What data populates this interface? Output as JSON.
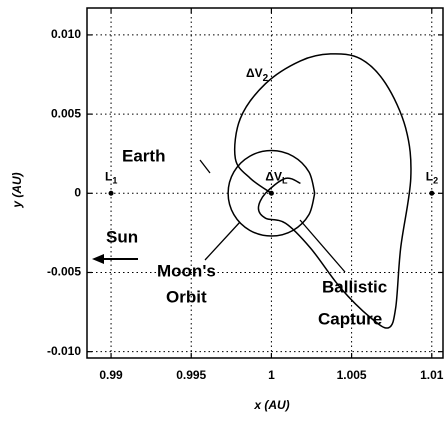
{
  "chart_data": {
    "type": "line",
    "xlabel": "x (AU)",
    "ylabel": "y (AU)",
    "xlim": [
      0.9885,
      1.0107
    ],
    "xticks": [
      0.99,
      0.995,
      1,
      1.005,
      1.01
    ],
    "ylim": [
      -0.0104,
      0.0117
    ],
    "yticks": [
      {
        "value": 0.01,
        "label": "0.010"
      },
      {
        "value": 0.005,
        "label": "0.005"
      },
      0,
      -0.005,
      {
        "value": -0.01,
        "label": "-0.010"
      }
    ],
    "grid": true,
    "series": [
      {
        "color": "#000000",
        "x": [
          1.0027,
          1.00234,
          1.00135,
          1,
          0.99865,
          0.99766,
          0.9973,
          0.99766,
          0.99865,
          1,
          1.00135,
          1.00234,
          1.0027
        ],
        "values": [
          0,
          0.00135,
          0.00234,
          0.0027,
          0.00234,
          0.00135,
          0,
          -0.00135,
          -0.00234,
          -0.0027,
          -0.00234,
          -0.00135,
          0
        ]
      },
      {
        "color": "#000000",
        "x": [
          1.0001,
          0.99869,
          0.99775,
          0.99806,
          0.99963,
          1.00181,
          1.00369,
          1.00556,
          1.00713,
          1.00838,
          1.00869,
          1.00806,
          1.00775,
          1.00731,
          1.00619,
          1.00431,
          1.00244,
          1.00088,
          0.99963,
          0.99919,
          0.99963,
          1.00088,
          1.00181
        ],
        "values": [
          -6e-05,
          0.00094,
          0.0022,
          0.00472,
          0.00692,
          0.00836,
          0.0088,
          0.00849,
          0.00692,
          0.00409,
          0.00094,
          -0.00346,
          -0.00723,
          -0.00849,
          -0.00786,
          -0.00597,
          -0.00346,
          -0.00189,
          -0.00157,
          -0.00094,
          0,
          0.00094,
          0.00063
        ]
      }
    ],
    "points": [
      {
        "label": "L",
        "sub": "1",
        "x": 0.99,
        "y": 0
      },
      {
        "label": "L",
        "sub": "2",
        "x": 1.01,
        "y": 0
      },
      {
        "label": "ΔV",
        "sub": "L",
        "x": 1,
        "y": 0
      }
    ],
    "annotations": [
      {
        "text": "Earth"
      },
      {
        "text": "ΔV",
        "sub": "2"
      },
      {
        "text": "Sun"
      },
      {
        "text": "Moon's"
      },
      {
        "text": "Orbit"
      },
      {
        "text": "Ballistic"
      },
      {
        "text": "Capture"
      }
    ]
  }
}
